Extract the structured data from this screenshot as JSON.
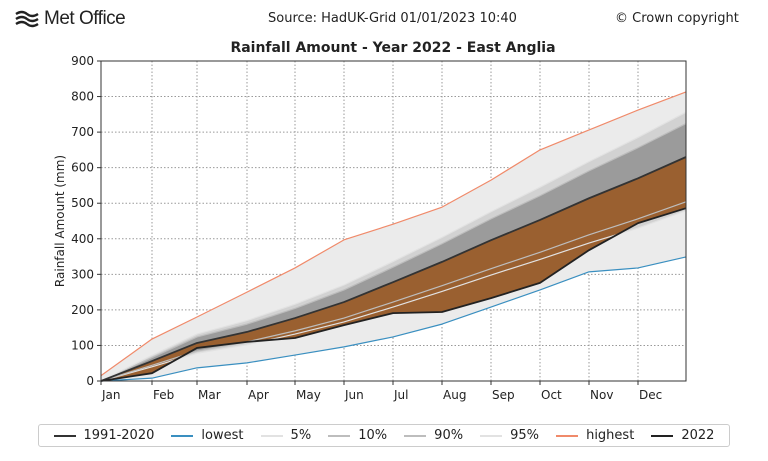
{
  "header": {
    "logo": "Met Office",
    "source": "Source: HadUK-Grid 01/01/2023 10:40",
    "copyright": "© Crown copyright"
  },
  "chart_data": {
    "type": "line",
    "title": "Rainfall Amount - Year 2022 - East Anglia",
    "xlabel": "",
    "ylabel": "Rainfall Amount (mm)",
    "ylim": [
      0,
      900
    ],
    "yticks": [
      "0",
      "100",
      "200",
      "300",
      "400",
      "500",
      "600",
      "700",
      "800",
      "900"
    ],
    "x_tick_labels": [
      "Jan",
      "Feb",
      "Mar",
      "Apr",
      "May",
      "Jun",
      "Jul",
      "Aug",
      "Sep",
      "Oct",
      "Nov",
      "Dec"
    ],
    "x_points": [
      "Jan 1",
      "Feb 1",
      "Mar 1",
      "Apr 1",
      "May 1",
      "Jun 1",
      "Jul 1",
      "Aug 1",
      "Sep 1",
      "Oct 1",
      "Nov 1",
      "Dec 1",
      "Dec 31"
    ],
    "grid": true,
    "legend_position": "bottom",
    "series": [
      {
        "name": "1991-2020",
        "color": "#333333",
        "values": [
          0,
          56,
          107,
          138,
          177,
          222,
          278,
          335,
          396,
          453,
          514,
          570,
          630
        ]
      },
      {
        "name": "lowest",
        "color": "#3a8fc0",
        "values": [
          0,
          8,
          37,
          51,
          73,
          96,
          124,
          160,
          208,
          256,
          307,
          318,
          349
        ]
      },
      {
        "name": "5%",
        "color": "#e2e2e2",
        "values": [
          0,
          40,
          78,
          102,
          132,
          166,
          208,
          252,
          298,
          342,
          388,
          430,
          479
        ]
      },
      {
        "name": "10%",
        "color": "#bdbdbd",
        "values": [
          0,
          44,
          84,
          110,
          141,
          177,
          222,
          268,
          316,
          362,
          411,
          456,
          504
        ]
      },
      {
        "name": "90%",
        "color": "#bdbdbd",
        "values": [
          0,
          66,
          124,
          160,
          204,
          256,
          320,
          386,
          456,
          521,
          591,
          656,
          724
        ]
      },
      {
        "name": "95%",
        "color": "#e2e2e2",
        "values": [
          0,
          72,
          132,
          170,
          216,
          270,
          336,
          404,
          476,
          545,
          617,
          685,
          756
        ]
      },
      {
        "name": "highest",
        "color": "#f08a6a",
        "values": [
          15,
          118,
          180,
          250,
          318,
          397,
          441,
          489,
          565,
          650,
          706,
          762,
          813
        ]
      },
      {
        "name": "2022",
        "color": "#222222",
        "values": [
          0,
          22,
          93,
          110,
          121,
          157,
          191,
          194,
          233,
          276,
          368,
          444,
          486
        ]
      }
    ],
    "fill_colors": {
      "envelope": "#ebebeb",
      "p5_95": "#d2d2d2",
      "p10_90": "#9b9b9b",
      "below_average_2022": "#9a6030"
    }
  }
}
